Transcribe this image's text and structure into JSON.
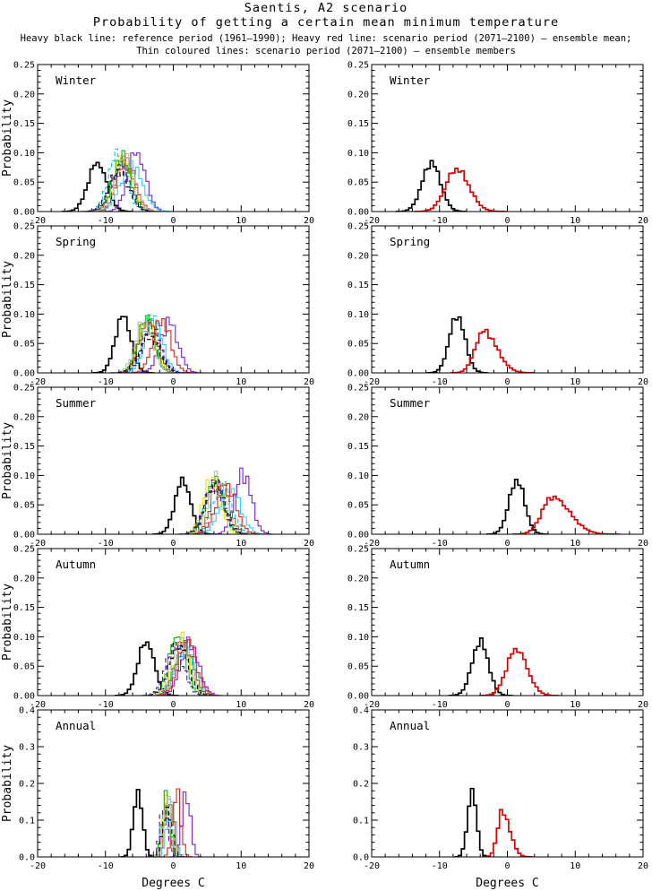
{
  "header": {
    "title": "Saentis, A2 scenario",
    "subtitle": "Probability of getting a certain mean minimum temperature",
    "legend_line1": "Heavy black line: reference period (1961–1990); Heavy red line: scenario period (2071–2100) – ensemble mean;",
    "legend_line2": "Thin coloured lines: scenario period (2071–2100) – ensemble members"
  },
  "colors": {
    "reference": "#000000",
    "ensemble_mean": "#dd0000",
    "axis": "#000000",
    "background": "#ffffff"
  },
  "chart_data": {
    "type": "line",
    "description": "Histogram-outline probability distributions; 5 rows (seasons) x 2 columns (left: reference + 10 ensemble members, right: reference + ensemble mean). Curves given as peak position (Degrees C), peak probability and width (sigma, Degrees C).",
    "xlabel": "Degrees C",
    "ylabel": "Probability",
    "x": {
      "range": [
        -20,
        20
      ],
      "major_ticks": [
        -20,
        -10,
        0,
        10,
        20
      ],
      "tick_labels": [
        "-20",
        "-10",
        "0",
        "10",
        "20"
      ],
      "minor_step": 2
    },
    "columns": [
      {
        "key": "members",
        "content": "reference + ensemble members"
      },
      {
        "key": "mean",
        "content": "reference + ensemble mean"
      }
    ],
    "rows": [
      {
        "season": "Winter",
        "ylim": [
          0,
          0.25
        ],
        "yticks": [
          0,
          0.05,
          0.1,
          0.15,
          0.2,
          0.25
        ],
        "ylabels": [
          "0.00",
          "0.05",
          "0.10",
          "0.15",
          "0.20",
          "0.25"
        ],
        "y_minor": 0.01,
        "reference": {
          "center": -11.2,
          "peak": 0.083,
          "sigma": 1.35
        },
        "ensemble_mean": {
          "center": -7.5,
          "peak": 0.072,
          "sigma": 1.6,
          "skew": 0.15
        },
        "members": [
          {
            "name": "violet",
            "color": "#7a1fd6",
            "dash": false,
            "center": -5.4,
            "peak": 0.1,
            "sigma": 1.3
          },
          {
            "name": "cyan",
            "color": "#33ccff",
            "dash": false,
            "center": -6.2,
            "peak": 0.08,
            "sigma": 1.6
          },
          {
            "name": "cyan-dashed",
            "color": "#00ccdd",
            "dash": true,
            "center": -8.2,
            "peak": 0.1,
            "sigma": 1.3
          },
          {
            "name": "red",
            "color": "#e32222",
            "dash": false,
            "center": -7.2,
            "peak": 0.082,
            "sigma": 1.5
          },
          {
            "name": "yellow",
            "color": "#e6e600",
            "dash": false,
            "center": -7.4,
            "peak": 0.092,
            "sigma": 1.3
          },
          {
            "name": "green",
            "color": "#00c000",
            "dash": false,
            "center": -7.6,
            "peak": 0.093,
            "sigma": 1.3
          },
          {
            "name": "brown",
            "color": "#a85a1e",
            "dash": false,
            "center": -7.0,
            "peak": 0.09,
            "sigma": 1.3
          },
          {
            "name": "grey",
            "color": "#b8b8b8",
            "dash": false,
            "center": -7.1,
            "peak": 0.092,
            "sigma": 1.4
          },
          {
            "name": "black-dashed",
            "color": "#000000",
            "dash": true,
            "center": -8.0,
            "peak": 0.068,
            "sigma": 1.5
          },
          {
            "name": "purple-dashed",
            "color": "#5a10a8",
            "dash": true,
            "center": -7.8,
            "peak": 0.075,
            "sigma": 1.4
          }
        ]
      },
      {
        "season": "Spring",
        "ylim": [
          0,
          0.25
        ],
        "yticks": [
          0,
          0.05,
          0.1,
          0.15,
          0.2,
          0.25
        ],
        "ylabels": [
          "0.00",
          "0.05",
          "0.10",
          "0.15",
          "0.20",
          "0.25"
        ],
        "y_minor": 0.01,
        "reference": {
          "center": -7.4,
          "peak": 0.097,
          "sigma": 1.15
        },
        "ensemble_mean": {
          "center": -3.5,
          "peak": 0.071,
          "sigma": 1.25,
          "skew": 0.55
        },
        "members": [
          {
            "name": "violet",
            "color": "#7a1fd6",
            "dash": false,
            "center": -0.6,
            "peak": 0.086,
            "sigma": 1.3
          },
          {
            "name": "cyan",
            "color": "#33ccff",
            "dash": false,
            "center": -2.9,
            "peak": 0.09,
            "sigma": 1.3
          },
          {
            "name": "cyan-dashed",
            "color": "#00ccdd",
            "dash": true,
            "center": -3.3,
            "peak": 0.098,
            "sigma": 1.2
          },
          {
            "name": "red",
            "color": "#e32222",
            "dash": false,
            "center": -1.7,
            "peak": 0.09,
            "sigma": 1.3
          },
          {
            "name": "yellow",
            "color": "#e6e600",
            "dash": false,
            "center": -3.9,
            "peak": 0.092,
            "sigma": 1.2
          },
          {
            "name": "green",
            "color": "#00c000",
            "dash": false,
            "center": -4.0,
            "peak": 0.09,
            "sigma": 1.2
          },
          {
            "name": "brown",
            "color": "#a85a1e",
            "dash": false,
            "center": -3.7,
            "peak": 0.088,
            "sigma": 1.3
          },
          {
            "name": "grey",
            "color": "#b8b8b8",
            "dash": false,
            "center": -4.3,
            "peak": 0.085,
            "sigma": 1.3
          },
          {
            "name": "black-dashed",
            "color": "#000000",
            "dash": true,
            "center": -3.5,
            "peak": 0.062,
            "sigma": 1.5
          },
          {
            "name": "purple-dashed",
            "color": "#5a10a8",
            "dash": true,
            "center": -3.2,
            "peak": 0.08,
            "sigma": 1.3
          }
        ]
      },
      {
        "season": "Summer",
        "ylim": [
          0,
          0.25
        ],
        "yticks": [
          0,
          0.05,
          0.1,
          0.15,
          0.2,
          0.25
        ],
        "ylabels": [
          "0.00",
          "0.05",
          "0.10",
          "0.15",
          "0.20",
          "0.25"
        ],
        "y_minor": 0.01,
        "reference": {
          "center": 1.4,
          "peak": 0.092,
          "sigma": 1.15
        },
        "ensemble_mean": {
          "center": 6.6,
          "peak": 0.063,
          "sigma": 1.5,
          "skew": 0.7
        },
        "members": [
          {
            "name": "violet",
            "color": "#7a1fd6",
            "dash": false,
            "center": 10.3,
            "peak": 0.104,
            "sigma": 1.2
          },
          {
            "name": "cyan",
            "color": "#33ccff",
            "dash": false,
            "center": 8.4,
            "peak": 0.078,
            "sigma": 1.5
          },
          {
            "name": "cyan-dashed",
            "color": "#00ccdd",
            "dash": true,
            "center": 7.2,
            "peak": 0.08,
            "sigma": 1.4
          },
          {
            "name": "red",
            "color": "#e32222",
            "dash": false,
            "center": 7.8,
            "peak": 0.086,
            "sigma": 1.4
          },
          {
            "name": "yellow",
            "color": "#e6e600",
            "dash": false,
            "center": 5.7,
            "peak": 0.094,
            "sigma": 1.3
          },
          {
            "name": "green",
            "color": "#00c000",
            "dash": false,
            "center": 6.1,
            "peak": 0.09,
            "sigma": 1.3
          },
          {
            "name": "brown",
            "color": "#a85a1e",
            "dash": false,
            "center": 6.9,
            "peak": 0.09,
            "sigma": 1.3
          },
          {
            "name": "grey",
            "color": "#b8b8b8",
            "dash": false,
            "center": 6.5,
            "peak": 0.094,
            "sigma": 1.3
          },
          {
            "name": "black-dashed",
            "color": "#000000",
            "dash": true,
            "center": 6.2,
            "peak": 0.088,
            "sigma": 1.4
          },
          {
            "name": "purple-dashed",
            "color": "#5a10a8",
            "dash": true,
            "center": 6.0,
            "peak": 0.082,
            "sigma": 1.4
          }
        ]
      },
      {
        "season": "Autumn",
        "ylim": [
          0,
          0.25
        ],
        "yticks": [
          0,
          0.05,
          0.1,
          0.15,
          0.2,
          0.25
        ],
        "ylabels": [
          "0.00",
          "0.05",
          "0.10",
          "0.15",
          "0.20",
          "0.25"
        ],
        "y_minor": 0.01,
        "reference": {
          "center": -4.0,
          "peak": 0.092,
          "sigma": 1.2
        },
        "ensemble_mean": {
          "center": 1.3,
          "peak": 0.079,
          "sigma": 1.4,
          "skew": 0.15
        },
        "members": [
          {
            "name": "violet",
            "color": "#7a1fd6",
            "dash": false,
            "center": 2.4,
            "peak": 0.09,
            "sigma": 1.3
          },
          {
            "name": "cyan",
            "color": "#33ccff",
            "dash": false,
            "center": 1.8,
            "peak": 0.082,
            "sigma": 1.4
          },
          {
            "name": "cyan-dashed",
            "color": "#00ccdd",
            "dash": true,
            "center": 1.4,
            "peak": 0.084,
            "sigma": 1.3
          },
          {
            "name": "red",
            "color": "#e32222",
            "dash": false,
            "center": 2.1,
            "peak": 0.094,
            "sigma": 1.3
          },
          {
            "name": "yellow",
            "color": "#e6e600",
            "dash": false,
            "center": 1.2,
            "peak": 0.094,
            "sigma": 1.2
          },
          {
            "name": "green",
            "color": "#00c000",
            "dash": false,
            "center": 0.6,
            "peak": 0.104,
            "sigma": 1.2
          },
          {
            "name": "brown",
            "color": "#a85a1e",
            "dash": false,
            "center": 1.6,
            "peak": 0.09,
            "sigma": 1.3
          },
          {
            "name": "grey",
            "color": "#b8b8b8",
            "dash": false,
            "center": 1.0,
            "peak": 0.09,
            "sigma": 1.3
          },
          {
            "name": "black-dashed",
            "color": "#000000",
            "dash": true,
            "center": 0.8,
            "peak": 0.088,
            "sigma": 1.4
          },
          {
            "name": "purple-dashed",
            "color": "#5a10a8",
            "dash": true,
            "center": 0.2,
            "peak": 0.084,
            "sigma": 1.3
          }
        ]
      },
      {
        "season": "Annual",
        "ylim": [
          0,
          0.4
        ],
        "yticks": [
          0,
          0.1,
          0.2,
          0.3,
          0.4
        ],
        "ylabels": [
          "0.0",
          "0.1",
          "0.2",
          "0.3",
          "0.4"
        ],
        "y_minor": 0.02,
        "reference": {
          "center": -5.2,
          "peak": 0.18,
          "sigma": 0.65
        },
        "ensemble_mean": {
          "center": -0.75,
          "peak": 0.123,
          "sigma": 0.7,
          "skew": 0.6
        },
        "members": [
          {
            "name": "violet",
            "color": "#7a1fd6",
            "dash": false,
            "center": 1.9,
            "peak": 0.18,
            "sigma": 0.6
          },
          {
            "name": "cyan",
            "color": "#33ccff",
            "dash": false,
            "center": -0.35,
            "peak": 0.16,
            "sigma": 0.6
          },
          {
            "name": "cyan-dashed",
            "color": "#00ccdd",
            "dash": true,
            "center": -1.1,
            "peak": 0.15,
            "sigma": 0.6
          },
          {
            "name": "red",
            "color": "#e32222",
            "dash": false,
            "center": 0.5,
            "peak": 0.17,
            "sigma": 0.6
          },
          {
            "name": "yellow",
            "color": "#e6e600",
            "dash": false,
            "center": -0.95,
            "peak": 0.165,
            "sigma": 0.55
          },
          {
            "name": "green",
            "color": "#00c000",
            "dash": false,
            "center": -1.05,
            "peak": 0.16,
            "sigma": 0.55
          },
          {
            "name": "brown",
            "color": "#a85a1e",
            "dash": false,
            "center": -0.6,
            "peak": 0.16,
            "sigma": 0.6
          },
          {
            "name": "grey",
            "color": "#b8b8b8",
            "dash": false,
            "center": -0.85,
            "peak": 0.15,
            "sigma": 0.6
          },
          {
            "name": "black-dashed",
            "color": "#000000",
            "dash": true,
            "center": -0.9,
            "peak": 0.135,
            "sigma": 0.65
          },
          {
            "name": "purple-dashed",
            "color": "#5a10a8",
            "dash": true,
            "center": -1.35,
            "peak": 0.13,
            "sigma": 0.65
          }
        ]
      }
    ]
  }
}
